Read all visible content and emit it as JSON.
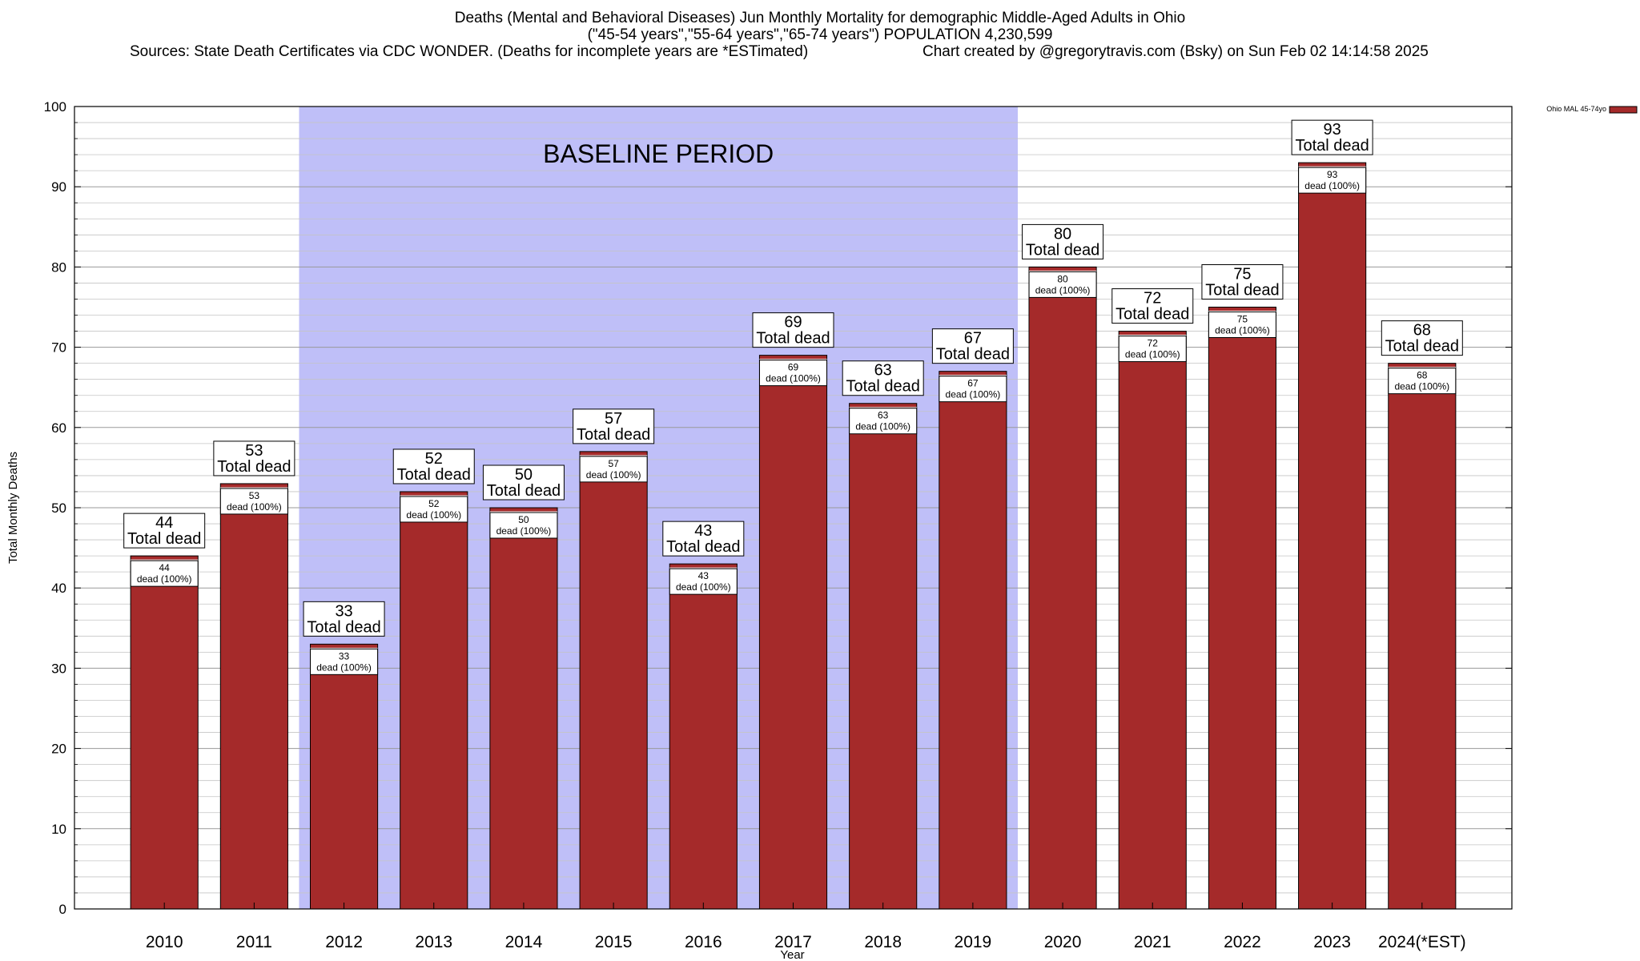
{
  "titles": {
    "line1": "Deaths (Mental and Behavioral Diseases) Jun Monthly Mortality for demographic Middle-Aged Adults in Ohio",
    "line2": "(\"45-54 years\",\"55-64 years\",\"65-74 years\") POPULATION 4,230,599",
    "line3_left": "Sources: State Death Certificates via CDC WONDER. (Deaths for incomplete years are *ESTimated)",
    "line3_right": "Chart created by @gregorytravis.com (Bsky) on Sun Feb 02 14:14:58 2025"
  },
  "chart_data": {
    "type": "bar",
    "title": "Deaths (Mental and Behavioral Diseases) Jun Monthly Mortality for demographic Middle-Aged Adults in Ohio",
    "xlabel": "Year",
    "ylabel": "Total Monthly Deaths",
    "ylim": [
      0,
      100
    ],
    "yticks": [
      0,
      10,
      20,
      30,
      40,
      50,
      60,
      70,
      80,
      90,
      100
    ],
    "minor_grid_step": 2,
    "categories": [
      "2010",
      "2011",
      "2012",
      "2013",
      "2014",
      "2015",
      "2016",
      "2017",
      "2018",
      "2019",
      "2020",
      "2021",
      "2022",
      "2023",
      "2024(*EST)"
    ],
    "series": [
      {
        "name": "Ohio MAL 45-74yo",
        "color": "#a52a2a",
        "values": [
          44,
          53,
          33,
          52,
          50,
          57,
          43,
          69,
          63,
          67,
          80,
          72,
          75,
          93,
          68
        ]
      }
    ],
    "outer_label_suffix": "Total dead",
    "inner_label_suffix": "dead (100%)",
    "baseline_period": {
      "label": "BASELINE PERIOD",
      "from_category": "2012",
      "to_category": "2019",
      "color": "#bfbff8"
    },
    "legend": {
      "label": "Ohio MAL 45-74yo",
      "position": "top-right outside"
    }
  }
}
